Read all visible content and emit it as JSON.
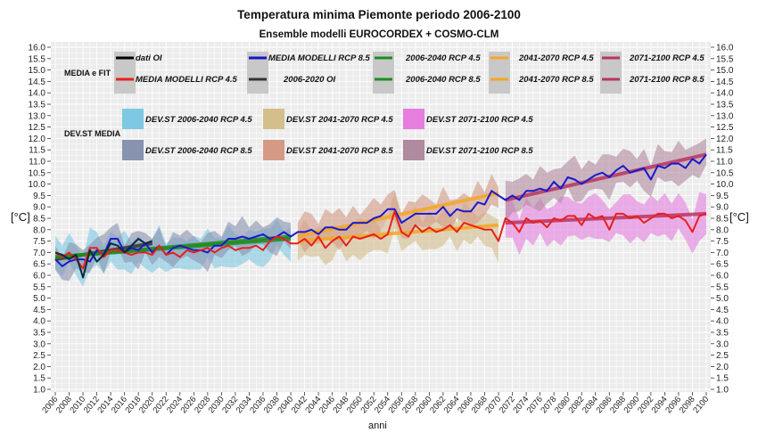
{
  "chart_data": {
    "type": "line",
    "title": "Temperatura minima Piemonte  periodo 2006-2100",
    "subtitle": "Ensemble modelli EUROCORDEX + COSMO-CLM",
    "xlabel": "anni",
    "ylabel": "[°C]",
    "ylabel_right": "[°C]",
    "xlim": [
      2006,
      2100
    ],
    "ylim": [
      1.0,
      16.0
    ],
    "grid": true,
    "y_ticks": [
      "1.0",
      "1.5",
      "2.0",
      "2.5",
      "3.0",
      "3.5",
      "4.0",
      "4.5",
      "5.0",
      "5.5",
      "6.0",
      "6.5",
      "7.0",
      "7.5",
      "8.0",
      "8.5",
      "9.0",
      "9.5",
      "10.0",
      "10.5",
      "11.0",
      "11.5",
      "12.0",
      "12.5",
      "13.0",
      "13.5",
      "14.0",
      "14.5",
      "15.0",
      "15.5",
      "16.0"
    ],
    "x_ticks": [
      "2006",
      "2008",
      "2010",
      "2012",
      "2014",
      "2016",
      "2018",
      "2020",
      "2022",
      "2024",
      "2026",
      "2028",
      "2030",
      "2032",
      "2034",
      "2036",
      "2038",
      "2040",
      "2042",
      "2044",
      "2046",
      "2048",
      "2050",
      "2052",
      "2054",
      "2056",
      "2058",
      "2060",
      "2062",
      "2064",
      "2066",
      "2068",
      "2070",
      "2072",
      "2074",
      "2076",
      "2078",
      "2080",
      "2082",
      "2084",
      "2086",
      "2088",
      "2090",
      "2092",
      "2094",
      "2096",
      "2098",
      "2100"
    ],
    "legend": {
      "placement": "top",
      "group_media_label": "MEDIA e FIT",
      "group_devst_label": "DEV.ST MEDIA",
      "line_entries": [
        {
          "label": "dati OI",
          "color": "#000000"
        },
        {
          "label": "MEDIA MODELLI RCP 4.5",
          "color": "#ee1c1c"
        },
        {
          "label": "MEDIA MODELLI RCP 8.5",
          "color": "#1414c8"
        },
        {
          "label": "2006-2020 OI",
          "color": "#333333"
        },
        {
          "label": "2006-2040 RCP 4.5",
          "color": "#1e8c1e"
        },
        {
          "label": "2006-2040 RCP 8.5",
          "color": "#1e8c1e"
        },
        {
          "label": "2041-2070 RCP 4.5",
          "color": "#f5a623"
        },
        {
          "label": "2041-2070 RCP 8.5",
          "color": "#f5a623"
        },
        {
          "label": "2071-2100 RCP 4.5",
          "color": "#b83560"
        },
        {
          "label": "2071-2100 RCP 8.5",
          "color": "#b83560"
        }
      ],
      "band_entries": [
        {
          "label": "DEV.ST   2006-2040 RCP 4.5",
          "color": "#7ec8e3"
        },
        {
          "label": "DEV.ST   2006-2040 RCP 8.5",
          "color": "#8893b0"
        },
        {
          "label": "DEV.ST   2041-2070 RCP 4.5",
          "color": "#d4be8c"
        },
        {
          "label": "DEV.ST   2041-2070 RCP 8.5",
          "color": "#d49a85"
        },
        {
          "label": "DEV.ST   2071-2100 RCP 4.5",
          "color": "#e67ee0"
        },
        {
          "label": "DEV.ST   2071-2100 RCP 8.5",
          "color": "#b08a9e"
        }
      ]
    },
    "series": [
      {
        "name": "dati OI",
        "color": "#0b2a3a",
        "x": [
          2006,
          2007,
          2008,
          2009,
          2010,
          2011,
          2012,
          2013,
          2014,
          2015,
          2016,
          2017,
          2018,
          2019,
          2020
        ],
        "values": [
          7.0,
          6.9,
          6.7,
          6.9,
          5.9,
          7.1,
          6.6,
          6.9,
          7.4,
          7.3,
          7.0,
          7.3,
          7.6,
          7.4,
          7.5
        ]
      },
      {
        "name": "MEDIA MODELLI RCP 4.5",
        "color": "#e8201c",
        "x": [
          2006,
          2007,
          2008,
          2009,
          2010,
          2011,
          2012,
          2013,
          2014,
          2015,
          2016,
          2017,
          2018,
          2019,
          2020,
          2021,
          2022,
          2023,
          2024,
          2025,
          2026,
          2027,
          2028,
          2029,
          2030,
          2031,
          2032,
          2033,
          2034,
          2035,
          2036,
          2037,
          2038,
          2039,
          2040,
          2041,
          2042,
          2043,
          2044,
          2045,
          2046,
          2047,
          2048,
          2049,
          2050,
          2051,
          2052,
          2053,
          2054,
          2055,
          2056,
          2057,
          2058,
          2059,
          2060,
          2061,
          2062,
          2063,
          2064,
          2065,
          2066,
          2067,
          2068,
          2069,
          2070,
          2071,
          2072,
          2073,
          2074,
          2075,
          2076,
          2077,
          2078,
          2079,
          2080,
          2081,
          2082,
          2083,
          2084,
          2085,
          2086,
          2087,
          2088,
          2089,
          2090,
          2091,
          2092,
          2093,
          2094,
          2095,
          2096,
          2097,
          2098,
          2099,
          2100
        ],
        "values": [
          7.0,
          6.8,
          7.0,
          6.7,
          6.3,
          7.2,
          7.2,
          6.8,
          7.1,
          7.1,
          7.0,
          6.9,
          7.0,
          7.0,
          6.9,
          7.3,
          6.9,
          7.0,
          6.8,
          7.1,
          7.0,
          7.1,
          7.2,
          7.0,
          7.2,
          7.3,
          7.1,
          7.2,
          7.2,
          7.3,
          7.1,
          7.5,
          7.7,
          7.6,
          7.4,
          7.4,
          7.6,
          7.3,
          7.7,
          7.2,
          7.5,
          7.7,
          7.3,
          7.7,
          7.6,
          7.7,
          7.8,
          7.6,
          7.8,
          8.8,
          7.9,
          7.7,
          8.2,
          7.9,
          8.1,
          7.9,
          8.0,
          8.2,
          7.9,
          8.3,
          8.2,
          8.1,
          8.0,
          8.0,
          7.5,
          8.5,
          8.3,
          7.9,
          8.5,
          8.3,
          8.4,
          8.1,
          8.5,
          8.4,
          8.6,
          8.6,
          8.2,
          8.7,
          8.5,
          8.6,
          8.0,
          8.7,
          8.7,
          8.5,
          8.6,
          8.3,
          8.5,
          8.7,
          8.7,
          8.5,
          8.6,
          8.4,
          7.9,
          8.6,
          8.7
        ]
      },
      {
        "name": "MEDIA MODELLI RCP 8.5",
        "color": "#1a1acc",
        "x": [
          2006,
          2007,
          2008,
          2009,
          2010,
          2011,
          2012,
          2013,
          2014,
          2015,
          2016,
          2017,
          2018,
          2019,
          2020,
          2021,
          2022,
          2023,
          2024,
          2025,
          2026,
          2027,
          2028,
          2029,
          2030,
          2031,
          2032,
          2033,
          2034,
          2035,
          2036,
          2037,
          2038,
          2039,
          2040,
          2041,
          2042,
          2043,
          2044,
          2045,
          2046,
          2047,
          2048,
          2049,
          2050,
          2051,
          2052,
          2053,
          2054,
          2055,
          2056,
          2057,
          2058,
          2059,
          2060,
          2061,
          2062,
          2063,
          2064,
          2065,
          2066,
          2067,
          2068,
          2069,
          2070,
          2071,
          2072,
          2073,
          2074,
          2075,
          2076,
          2077,
          2078,
          2079,
          2080,
          2081,
          2082,
          2083,
          2084,
          2085,
          2086,
          2087,
          2088,
          2089,
          2090,
          2091,
          2092,
          2093,
          2094,
          2095,
          2096,
          2097,
          2098,
          2099,
          2100
        ],
        "values": [
          6.7,
          6.4,
          6.6,
          6.7,
          6.7,
          6.6,
          7.1,
          6.9,
          7.6,
          7.6,
          7.0,
          7.2,
          7.1,
          7.4,
          7.0,
          7.3,
          6.9,
          7.2,
          7.3,
          7.2,
          7.1,
          7.1,
          7.0,
          7.3,
          7.3,
          7.6,
          7.6,
          7.7,
          7.6,
          7.7,
          7.8,
          7.6,
          7.7,
          7.9,
          7.7,
          7.9,
          7.9,
          8.0,
          7.8,
          8.1,
          8.1,
          8.0,
          8.0,
          8.3,
          8.3,
          8.3,
          8.5,
          8.6,
          8.9,
          8.9,
          8.3,
          8.5,
          8.7,
          8.7,
          8.7,
          8.7,
          9.0,
          8.6,
          8.9,
          8.8,
          8.8,
          9.2,
          9.1,
          9.7,
          9.5,
          9.3,
          9.5,
          9.3,
          9.7,
          9.7,
          9.8,
          9.7,
          10.1,
          9.8,
          10.3,
          10.2,
          10.0,
          10.2,
          10.4,
          10.5,
          10.3,
          10.6,
          10.8,
          10.5,
          10.6,
          10.7,
          10.2,
          10.8,
          10.7,
          10.9,
          10.9,
          10.7,
          11.1,
          10.9,
          11.3
        ]
      }
    ],
    "trend_lines": [
      {
        "name": "2006-2020 OI",
        "color": "#333333",
        "x": [
          2006,
          2020
        ],
        "values": [
          6.7,
          7.4
        ]
      },
      {
        "name": "2006-2040 RCP 4.5",
        "color": "#1e8c1e",
        "x": [
          2006,
          2040
        ],
        "values": [
          6.8,
          7.6
        ]
      },
      {
        "name": "2006-2040 RCP 8.5",
        "color": "#1e8c1e",
        "x": [
          2006,
          2040
        ],
        "values": [
          6.8,
          7.7
        ]
      },
      {
        "name": "2041-2070 RCP 4.5",
        "color": "#f5a623",
        "x": [
          2041,
          2070
        ],
        "values": [
          7.5,
          8.2
        ]
      },
      {
        "name": "2041-2070 RCP 8.5",
        "color": "#f5a623",
        "x": [
          2041,
          2070
        ],
        "values": [
          7.7,
          9.6
        ]
      },
      {
        "name": "2071-2100 RCP 4.5",
        "color": "#b83560",
        "x": [
          2071,
          2100
        ],
        "values": [
          8.3,
          8.7
        ]
      },
      {
        "name": "2071-2100 RCP 8.5",
        "color": "#b83560",
        "x": [
          2071,
          2100
        ],
        "values": [
          9.3,
          11.3
        ]
      }
    ],
    "bands": [
      {
        "name": "DEV.ST 2006-2040 RCP 4.5",
        "color": "#7ec8e3",
        "x_range": [
          2006,
          2040
        ],
        "base_series": "MEDIA MODELLI RCP 4.5",
        "half_width_approx": 0.6
      },
      {
        "name": "DEV.ST 2006-2040 RCP 8.5",
        "color": "#8893b0",
        "x_range": [
          2006,
          2040
        ],
        "base_series": "MEDIA MODELLI RCP 8.5",
        "half_width_approx": 0.55
      },
      {
        "name": "DEV.ST 2041-2070 RCP 4.5",
        "color": "#d4be8c",
        "x_range": [
          2041,
          2070
        ],
        "base_series": "MEDIA MODELLI RCP 4.5",
        "half_width_approx": 0.6
      },
      {
        "name": "DEV.ST 2041-2070 RCP 8.5",
        "color": "#d49a85",
        "x_range": [
          2041,
          2070
        ],
        "base_series": "MEDIA MODELLI RCP 8.5",
        "half_width_approx": 0.6
      },
      {
        "name": "DEV.ST 2071-2100 RCP 4.5",
        "color": "#e67ee0",
        "x_range": [
          2071,
          2100
        ],
        "base_series": "MEDIA MODELLI RCP 4.5",
        "half_width_approx": 0.75
      },
      {
        "name": "DEV.ST 2071-2100 RCP 8.5",
        "color": "#b08a9e",
        "x_range": [
          2071,
          2100
        ],
        "base_series": "MEDIA MODELLI RCP 8.5",
        "half_width_approx": 0.7
      }
    ]
  }
}
